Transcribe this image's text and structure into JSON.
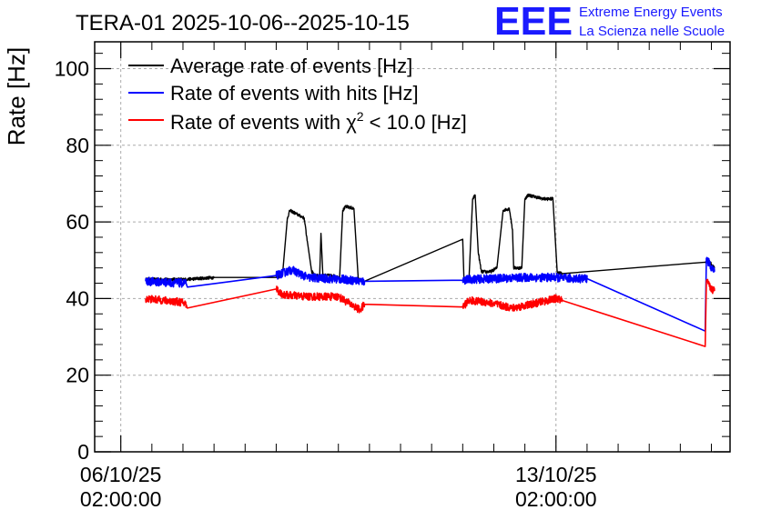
{
  "chart_data": {
    "type": "line",
    "title": "TERA-01 2025-10-06--2025-10-15",
    "ylabel": "Rate [Hz]",
    "xlabel": "",
    "ylim": [
      0,
      107
    ],
    "yticks": [
      0,
      20,
      40,
      60,
      80,
      100
    ],
    "x_unit": "days since 2025-10-06 02:00:00",
    "xlim": [
      -0.42,
      9.8
    ],
    "xticks": [
      {
        "x": 0,
        "label_date": "06/10/25",
        "label_time": "02:00:00"
      },
      {
        "x": 7,
        "label_date": "13/10/25",
        "label_time": "02:00:00"
      }
    ],
    "grid": true,
    "legend_position": "top-left",
    "series": [
      {
        "name": "Average rate of events [Hz]",
        "color": "#000000",
        "noise": 0.4,
        "points": [
          [
            0.4,
            45
          ],
          [
            1.05,
            45
          ],
          [
            1.5,
            45.5
          ],
          [
            2.5,
            45.5
          ],
          [
            2.6,
            46
          ],
          [
            2.68,
            61
          ],
          [
            2.72,
            63
          ],
          [
            2.95,
            61
          ],
          [
            3.0,
            55
          ],
          [
            3.07,
            47
          ],
          [
            3.15,
            46
          ],
          [
            3.2,
            46
          ],
          [
            3.22,
            57
          ],
          [
            3.25,
            46
          ],
          [
            3.4,
            46
          ],
          [
            3.52,
            45.5
          ],
          [
            3.57,
            63
          ],
          [
            3.62,
            64
          ],
          [
            3.75,
            63.5
          ],
          [
            3.82,
            45
          ],
          [
            3.92,
            44.5
          ],
          [
            5.5,
            55.5
          ],
          [
            5.52,
            45
          ],
          [
            5.6,
            45
          ],
          [
            5.66,
            66
          ],
          [
            5.7,
            67
          ],
          [
            5.75,
            52
          ],
          [
            5.8,
            47
          ],
          [
            5.95,
            47
          ],
          [
            6.05,
            48
          ],
          [
            6.15,
            63
          ],
          [
            6.25,
            63.5
          ],
          [
            6.3,
            58
          ],
          [
            6.32,
            48
          ],
          [
            6.45,
            48
          ],
          [
            6.5,
            66
          ],
          [
            6.55,
            67
          ],
          [
            6.8,
            66
          ],
          [
            6.95,
            66
          ],
          [
            7.02,
            47
          ],
          [
            7.1,
            46.5
          ],
          [
            9.4,
            49.5
          ],
          [
            9.44,
            50
          ],
          [
            9.5,
            49
          ],
          [
            9.55,
            48
          ]
        ]
      },
      {
        "name": "Rate of events with hits [Hz]",
        "color": "#0000ff",
        "noise": 1.1,
        "points": [
          [
            0.4,
            44.5
          ],
          [
            1.0,
            44
          ],
          [
            1.05,
            44
          ],
          [
            1.07,
            43
          ],
          [
            2.5,
            46
          ],
          [
            2.75,
            47.5
          ],
          [
            3.0,
            45.5
          ],
          [
            3.3,
            45.2
          ],
          [
            3.6,
            45
          ],
          [
            3.85,
            44.5
          ],
          [
            3.92,
            44.5
          ],
          [
            5.5,
            44.8
          ],
          [
            5.6,
            45
          ],
          [
            6.0,
            45.2
          ],
          [
            6.5,
            45.5
          ],
          [
            7.0,
            45.5
          ],
          [
            7.5,
            45.2
          ],
          [
            7.1,
            45.3
          ],
          [
            9.4,
            31.5
          ],
          [
            9.42,
            50.5
          ],
          [
            9.5,
            48
          ],
          [
            9.55,
            47
          ]
        ]
      },
      {
        "name": "Rate of events with χ² < 10.0 [Hz]",
        "color": "#ff0000",
        "noise": 1.0,
        "points": [
          [
            0.4,
            40
          ],
          [
            0.7,
            39.5
          ],
          [
            1.0,
            39
          ],
          [
            1.05,
            38.5
          ],
          [
            1.07,
            37.5
          ],
          [
            2.5,
            42.5
          ],
          [
            2.6,
            41
          ],
          [
            3.0,
            40.5
          ],
          [
            3.5,
            40.5
          ],
          [
            3.7,
            38.5
          ],
          [
            3.85,
            37
          ],
          [
            3.92,
            38.5
          ],
          [
            5.5,
            37.8
          ],
          [
            5.6,
            39.5
          ],
          [
            5.9,
            39
          ],
          [
            6.3,
            37.5
          ],
          [
            6.6,
            38.5
          ],
          [
            7.0,
            40
          ],
          [
            7.1,
            39.5
          ],
          [
            9.4,
            27.5
          ],
          [
            9.42,
            44.5
          ],
          [
            9.5,
            42.5
          ],
          [
            9.55,
            42
          ]
        ],
        "ordered_x": true
      }
    ]
  },
  "legend": {
    "entries": [
      "Average rate of events [Hz]",
      "Rate of events with hits [Hz]"
    ],
    "chi_entry_prefix": "Rate of events with χ",
    "chi_entry_sup": "2",
    "chi_entry_suffix": " < 10.0 [Hz]"
  },
  "logo": {
    "mark": "EEE",
    "line1": "Extreme Energy Events",
    "line2": "La Scienza nelle Scuole",
    "color": "#1a1aff"
  }
}
